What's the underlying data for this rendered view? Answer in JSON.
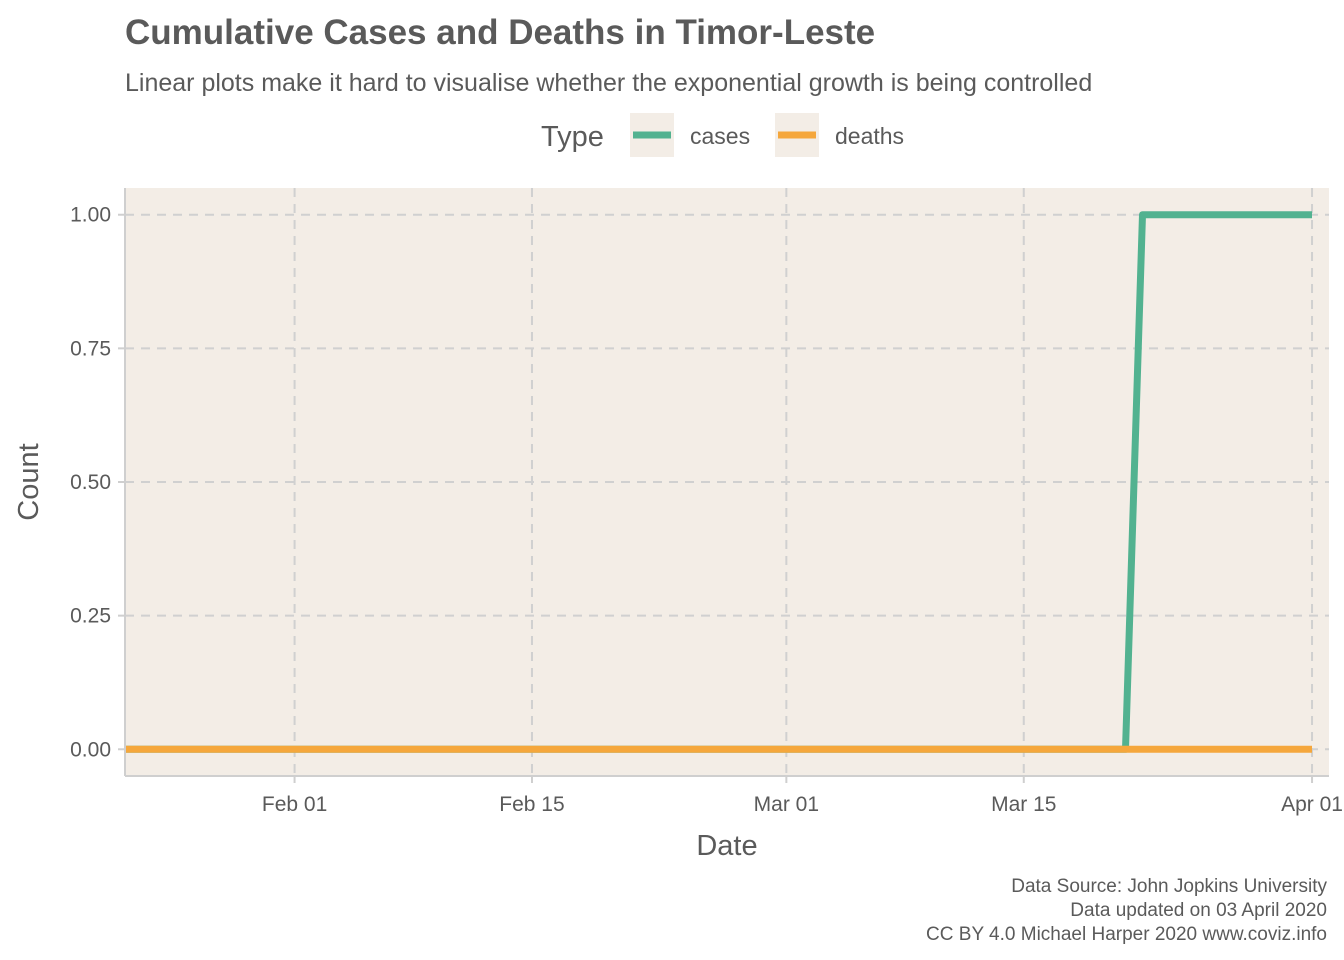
{
  "chart_data": {
    "type": "line",
    "title": "Cumulative Cases and Deaths in Timor-Leste",
    "subtitle": "Linear plots make it hard to visualise whether the exponential growth is being controlled",
    "xlabel": "Date",
    "ylabel": "Count",
    "legend": {
      "title": "Type",
      "placement": "top-center"
    },
    "xlim": [
      "2020-01-22",
      "2020-04-02"
    ],
    "x_ticks": [
      {
        "date": "2020-02-01",
        "label": "Feb 01"
      },
      {
        "date": "2020-02-15",
        "label": "Feb 15"
      },
      {
        "date": "2020-03-01",
        "label": "Mar 01"
      },
      {
        "date": "2020-03-15",
        "label": "Mar 15"
      },
      {
        "date": "2020-04-01",
        "label": "Apr 01"
      }
    ],
    "ylim": [
      -0.05,
      1.05
    ],
    "y_ticks": [
      {
        "value": 0,
        "label": "0.00"
      },
      {
        "value": 0.25,
        "label": "0.25"
      },
      {
        "value": 0.5,
        "label": "0.50"
      },
      {
        "value": 0.75,
        "label": "0.75"
      },
      {
        "value": 1,
        "label": "1.00"
      }
    ],
    "grid": true,
    "background_color": "#f3ede6",
    "grid_color": "#d0d0d0",
    "series": [
      {
        "name": "cases",
        "color": "#52b290",
        "points": [
          {
            "x": "2020-01-22",
            "y": 0
          },
          {
            "x": "2020-03-21",
            "y": 0
          },
          {
            "x": "2020-03-22",
            "y": 1
          },
          {
            "x": "2020-04-01",
            "y": 1
          }
        ]
      },
      {
        "name": "deaths",
        "color": "#f5a73c",
        "points": [
          {
            "x": "2020-01-22",
            "y": 0
          },
          {
            "x": "2020-04-01",
            "y": 0
          }
        ]
      }
    ],
    "caption": [
      "Data Source: John Jopkins University",
      "Data updated on 03 April 2020",
      "CC BY 4.0 Michael Harper 2020 www.coviz.info"
    ]
  }
}
